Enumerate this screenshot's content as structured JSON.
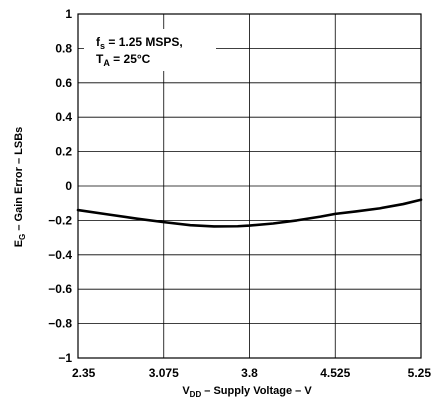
{
  "chart_data": {
    "type": "line",
    "xlabel": {
      "main": "V",
      "sub": "DD",
      "rest": " – Supply Voltage – V"
    },
    "ylabel": {
      "main": "E",
      "sub": "G",
      "rest": " – Gain Error – LSBs"
    },
    "xlim": [
      2.35,
      5.25
    ],
    "ylim": [
      -1,
      1
    ],
    "xticks": [
      "2.35",
      "3.075",
      "3.8",
      "4.525",
      "5.25"
    ],
    "xtick_values": [
      2.35,
      3.075,
      3.8,
      4.525,
      5.25
    ],
    "yticks": [
      "1",
      "0.8",
      "0.6",
      "0.4",
      "0.2",
      "0",
      "−0.2",
      "−0.4",
      "−0.6",
      "−0.8",
      "−1"
    ],
    "ytick_values": [
      1,
      0.8,
      0.6,
      0.4,
      0.2,
      0,
      -0.2,
      -0.4,
      -0.6,
      -0.8,
      -1
    ],
    "grid": true,
    "annotation": {
      "line1_main": "f",
      "line1_sub": "s",
      "line1_rest": " = 1.25 MSPS,",
      "line2_main": "T",
      "line2_sub": "A",
      "line2_rest": " = 25°C"
    },
    "series": [
      {
        "color": "#000000",
        "x": [
          2.35,
          2.6,
          2.85,
          3.075,
          3.3,
          3.5,
          3.7,
          3.8,
          4.0,
          4.2,
          4.4,
          4.525,
          4.7,
          4.9,
          5.1,
          5.25
        ],
        "y": [
          -0.14,
          -0.165,
          -0.19,
          -0.21,
          -0.228,
          -0.235,
          -0.234,
          -0.23,
          -0.218,
          -0.2,
          -0.178,
          -0.162,
          -0.148,
          -0.13,
          -0.105,
          -0.08
        ]
      }
    ]
  }
}
